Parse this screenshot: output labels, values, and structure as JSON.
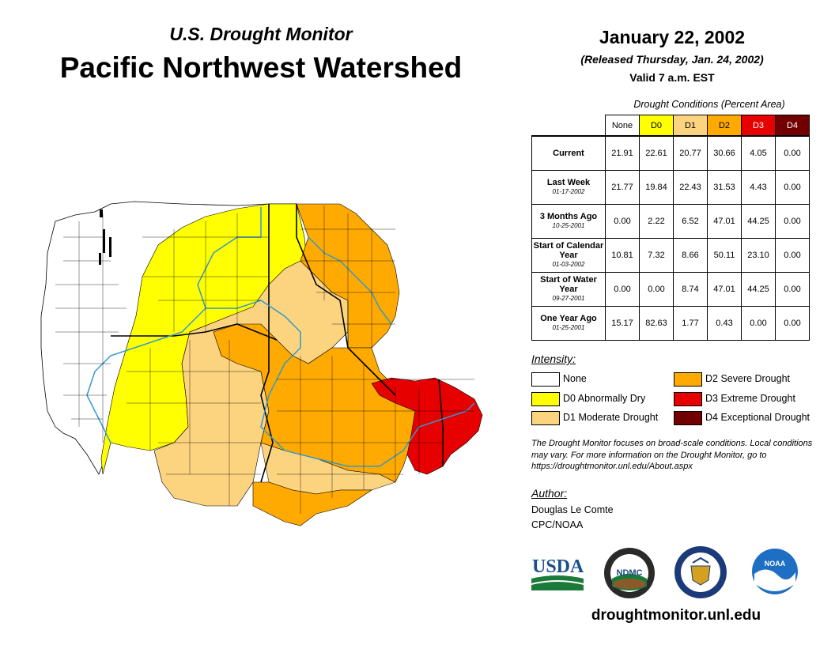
{
  "header": {
    "subtitle": "U.S. Drought Monitor",
    "title": "Pacific Northwest Watershed",
    "date": "January 22, 2002",
    "released": "(Released Thursday, Jan. 24, 2002)",
    "valid": "Valid 7 a.m. EST"
  },
  "table": {
    "caption": "Drought Conditions (Percent Area)",
    "columns": [
      {
        "label": "None",
        "color": "#ffffff",
        "text_color": "#000000"
      },
      {
        "label": "D0",
        "color": "#ffff00",
        "text_color": "#000000"
      },
      {
        "label": "D1",
        "color": "#fcd37f",
        "text_color": "#000000"
      },
      {
        "label": "D2",
        "color": "#ffaa00",
        "text_color": "#000000"
      },
      {
        "label": "D3",
        "color": "#e60000",
        "text_color": "#ffffff"
      },
      {
        "label": "D4",
        "color": "#730000",
        "text_color": "#ffffff"
      }
    ],
    "rows": [
      {
        "label": "Current",
        "date": "",
        "values": [
          "21.91",
          "22.61",
          "20.77",
          "30.66",
          "4.05",
          "0.00"
        ]
      },
      {
        "label": "Last Week",
        "date": "01-17-2002",
        "values": [
          "21.77",
          "19.84",
          "22.43",
          "31.53",
          "4.43",
          "0.00"
        ]
      },
      {
        "label": "3 Months Ago",
        "date": "10-25-2001",
        "values": [
          "0.00",
          "2.22",
          "6.52",
          "47.01",
          "44.25",
          "0.00"
        ]
      },
      {
        "label": "Start of Calendar Year",
        "date": "01-03-2002",
        "values": [
          "10.81",
          "7.32",
          "8.66",
          "50.11",
          "23.10",
          "0.00"
        ]
      },
      {
        "label": "Start of Water Year",
        "date": "09-27-2001",
        "values": [
          "0.00",
          "0.00",
          "8.74",
          "47.01",
          "44.25",
          "0.00"
        ]
      },
      {
        "label": "One Year Ago",
        "date": "01-25-2001",
        "values": [
          "15.17",
          "82.63",
          "1.77",
          "0.43",
          "0.00",
          "0.00"
        ]
      }
    ]
  },
  "legend": {
    "title": "Intensity:",
    "items": [
      {
        "label": "None",
        "color": "#ffffff"
      },
      {
        "label": "D0 Abnormally Dry",
        "color": "#ffff00"
      },
      {
        "label": "D1 Moderate Drought",
        "color": "#fcd37f"
      },
      {
        "label": "D2 Severe Drought",
        "color": "#ffaa00"
      },
      {
        "label": "D3 Extreme Drought",
        "color": "#e60000"
      },
      {
        "label": "D4 Exceptional Drought",
        "color": "#730000"
      }
    ]
  },
  "note": "The Drought Monitor focuses on broad-scale conditions. Local conditions may vary. For more information on the Drought Monitor, go to https://droughtmonitor.unl.edu/About.aspx",
  "author": {
    "label": "Author:",
    "name": "Douglas Le Comte",
    "org": "CPC/NOAA"
  },
  "logos": {
    "usda": "USDA",
    "ndmc": "NDMC",
    "noaa": "NOAA"
  },
  "footer": {
    "url": "droughtmonitor.unl.edu"
  }
}
